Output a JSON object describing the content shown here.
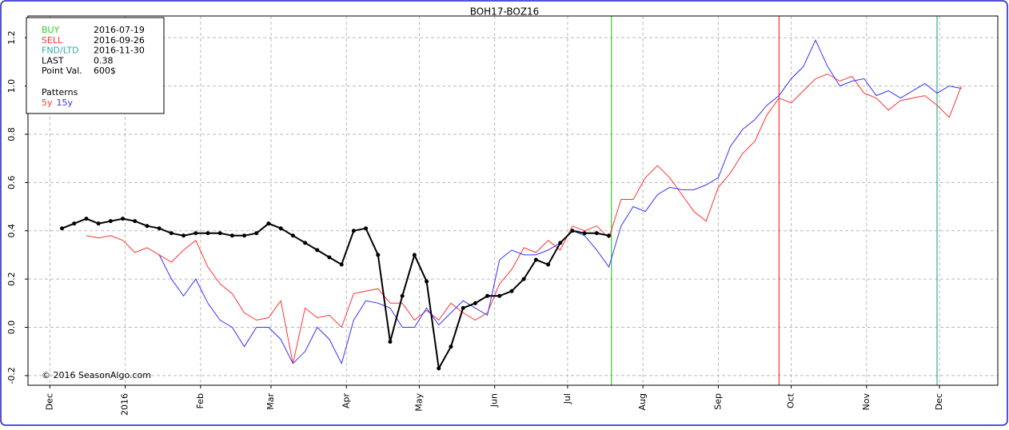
{
  "chart_data": {
    "type": "line",
    "title": "BOH17-BOZ16",
    "copyright": "© 2016 SeasonAlgo.com",
    "xlim": [
      -9,
      390
    ],
    "xticks": [
      {
        "value": 0,
        "label": "Dec"
      },
      {
        "value": 31,
        "label": "2016"
      },
      {
        "value": 62,
        "label": "Feb"
      },
      {
        "value": 91,
        "label": "Mar"
      },
      {
        "value": 122,
        "label": "Apr"
      },
      {
        "value": 152,
        "label": "May"
      },
      {
        "value": 183,
        "label": "Jun"
      },
      {
        "value": 213,
        "label": "Jul"
      },
      {
        "value": 244,
        "label": "Aug"
      },
      {
        "value": 275,
        "label": "Sep"
      },
      {
        "value": 305,
        "label": "Oct"
      },
      {
        "value": 336,
        "label": "Nov"
      },
      {
        "value": 366,
        "label": "Dec"
      }
    ],
    "ylim": [
      -0.24,
      1.29
    ],
    "yticks": [
      -0.2,
      {
        "value": 0,
        "label": "0.0"
      },
      0.2,
      0.4,
      0.6,
      0.8,
      {
        "value": 1,
        "label": "1.0"
      },
      1.2
    ],
    "grid": true,
    "info": [
      {
        "label": "BUY",
        "value": "2016-07-19",
        "color": "#33cc33",
        "x": 231
      },
      {
        "label": "SELL",
        "value": "2016-09-26",
        "color": "#ff3333",
        "x": 300
      },
      {
        "label": "FND/LTD",
        "value": "2016-11-30",
        "color": "#33aaaa",
        "x": 365
      },
      {
        "label": "LAST",
        "value": "0.38"
      },
      {
        "label": "Point Val.",
        "value": "600$"
      }
    ],
    "legend_title": "Patterns",
    "x": [
      5,
      10,
      15,
      20,
      25,
      30,
      35,
      40,
      45,
      50,
      55,
      60,
      65,
      70,
      75,
      80,
      85,
      90,
      95,
      100,
      105,
      110,
      115,
      120,
      125,
      130,
      135,
      140,
      145,
      150,
      155,
      160,
      165,
      170,
      175,
      180,
      185,
      190,
      195,
      200,
      205,
      210,
      215,
      220,
      225,
      230,
      235,
      240,
      245,
      250,
      255,
      260,
      265,
      270,
      275,
      280,
      285,
      290,
      295,
      300,
      305,
      310,
      315,
      320,
      325,
      330,
      335,
      340,
      345,
      350,
      355,
      360,
      365,
      370,
      375
    ],
    "series": [
      {
        "name": "5y",
        "color": "#ff3333",
        "values": [
          null,
          null,
          0.38,
          0.37,
          0.38,
          0.36,
          0.31,
          0.33,
          0.3,
          0.27,
          0.32,
          0.36,
          0.25,
          0.18,
          0.14,
          0.06,
          0.03,
          0.04,
          0.11,
          -0.15,
          0.08,
          0.04,
          0.05,
          0.0,
          0.14,
          0.15,
          0.16,
          0.1,
          0.1,
          0.03,
          0.07,
          0.03,
          0.1,
          0.06,
          0.03,
          0.06,
          0.18,
          0.24,
          0.33,
          0.31,
          0.36,
          0.32,
          0.42,
          0.4,
          0.42,
          0.37,
          0.53,
          0.53,
          0.62,
          0.67,
          0.62,
          0.55,
          0.48,
          0.44,
          0.58,
          0.64,
          0.72,
          0.77,
          0.88,
          0.95,
          0.93,
          0.98,
          1.03,
          1.05,
          1.02,
          1.04,
          0.97,
          0.95,
          0.9,
          0.94,
          0.95,
          0.96,
          0.92,
          0.87,
          1.0
        ]
      },
      {
        "name": "15y",
        "color": "#3333ff",
        "values": [
          null,
          null,
          null,
          null,
          null,
          null,
          null,
          null,
          0.3,
          0.2,
          0.13,
          0.2,
          0.1,
          0.03,
          0.0,
          -0.08,
          0.0,
          0.0,
          -0.05,
          -0.15,
          -0.1,
          0.0,
          -0.05,
          -0.15,
          0.03,
          0.11,
          0.1,
          0.08,
          0.0,
          0.0,
          0.08,
          0.01,
          0.06,
          0.11,
          0.08,
          0.05,
          0.28,
          0.32,
          0.3,
          0.3,
          0.32,
          0.35,
          0.4,
          0.38,
          0.32,
          0.25,
          0.42,
          0.5,
          0.48,
          0.55,
          0.58,
          0.57,
          0.57,
          0.59,
          0.62,
          0.75,
          0.82,
          0.86,
          0.92,
          0.96,
          1.03,
          1.08,
          1.19,
          1.08,
          1.0,
          1.02,
          1.03,
          0.96,
          0.98,
          0.95,
          0.98,
          1.01,
          0.97,
          1.0,
          0.99
        ]
      },
      {
        "color": "#000000",
        "markers": true,
        "values": [
          0.41,
          0.43,
          0.45,
          0.43,
          0.44,
          0.45,
          0.44,
          0.42,
          0.41,
          0.39,
          0.38,
          0.39,
          0.39,
          0.39,
          0.38,
          0.38,
          0.39,
          0.43,
          0.41,
          0.38,
          0.35,
          0.32,
          0.29,
          0.26,
          0.4,
          0.41,
          0.3,
          -0.06,
          0.13,
          0.3,
          0.19,
          -0.17,
          -0.08,
          0.08,
          0.1,
          0.13,
          0.13,
          0.15,
          0.2,
          0.28,
          0.26,
          0.35,
          0.4,
          0.39,
          0.39,
          0.38,
          null,
          null,
          null,
          null,
          null,
          null,
          null,
          null,
          null,
          null,
          null,
          null,
          null,
          null,
          null,
          null,
          null,
          null,
          null,
          null,
          null,
          null,
          null,
          null,
          null,
          null,
          null,
          null,
          null
        ]
      }
    ]
  }
}
